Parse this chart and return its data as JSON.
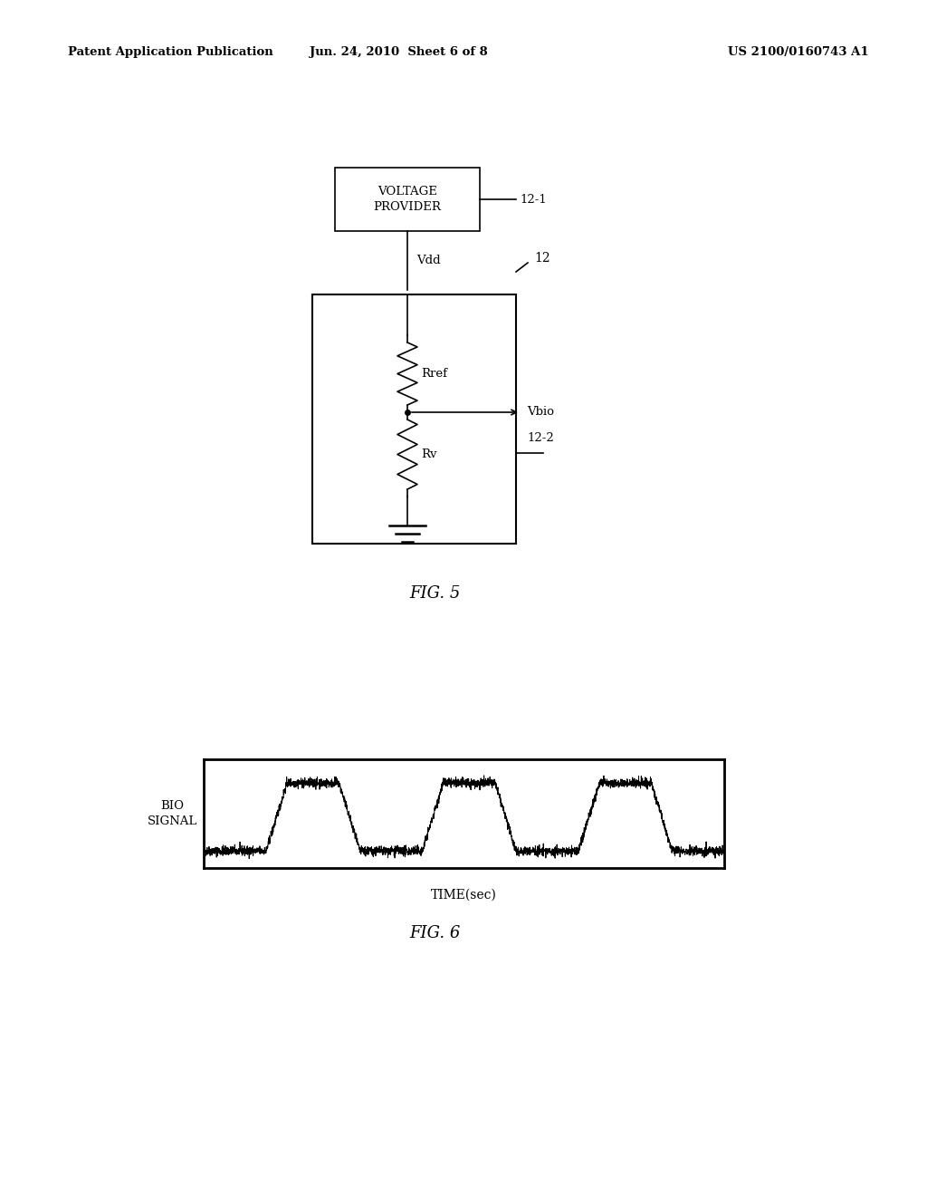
{
  "background_color": "#ffffff",
  "header_left": "Patent Application Publication",
  "header_center": "Jun. 24, 2010  Sheet 6 of 8",
  "header_right": "US 2100/0160743 A1",
  "fig5_label": "FIG. 5",
  "fig6_label": "FIG. 6",
  "label_12_1": "12-1",
  "label_12": "12",
  "label_12_2": "12-2",
  "label_vdd": "Vdd",
  "label_rref": "Rref",
  "label_rv": "Rv",
  "label_vbio": "Vbio",
  "time_xlabel": "TIME(sec)",
  "biosignal_ylabel": "BIO\nSIGNAL"
}
